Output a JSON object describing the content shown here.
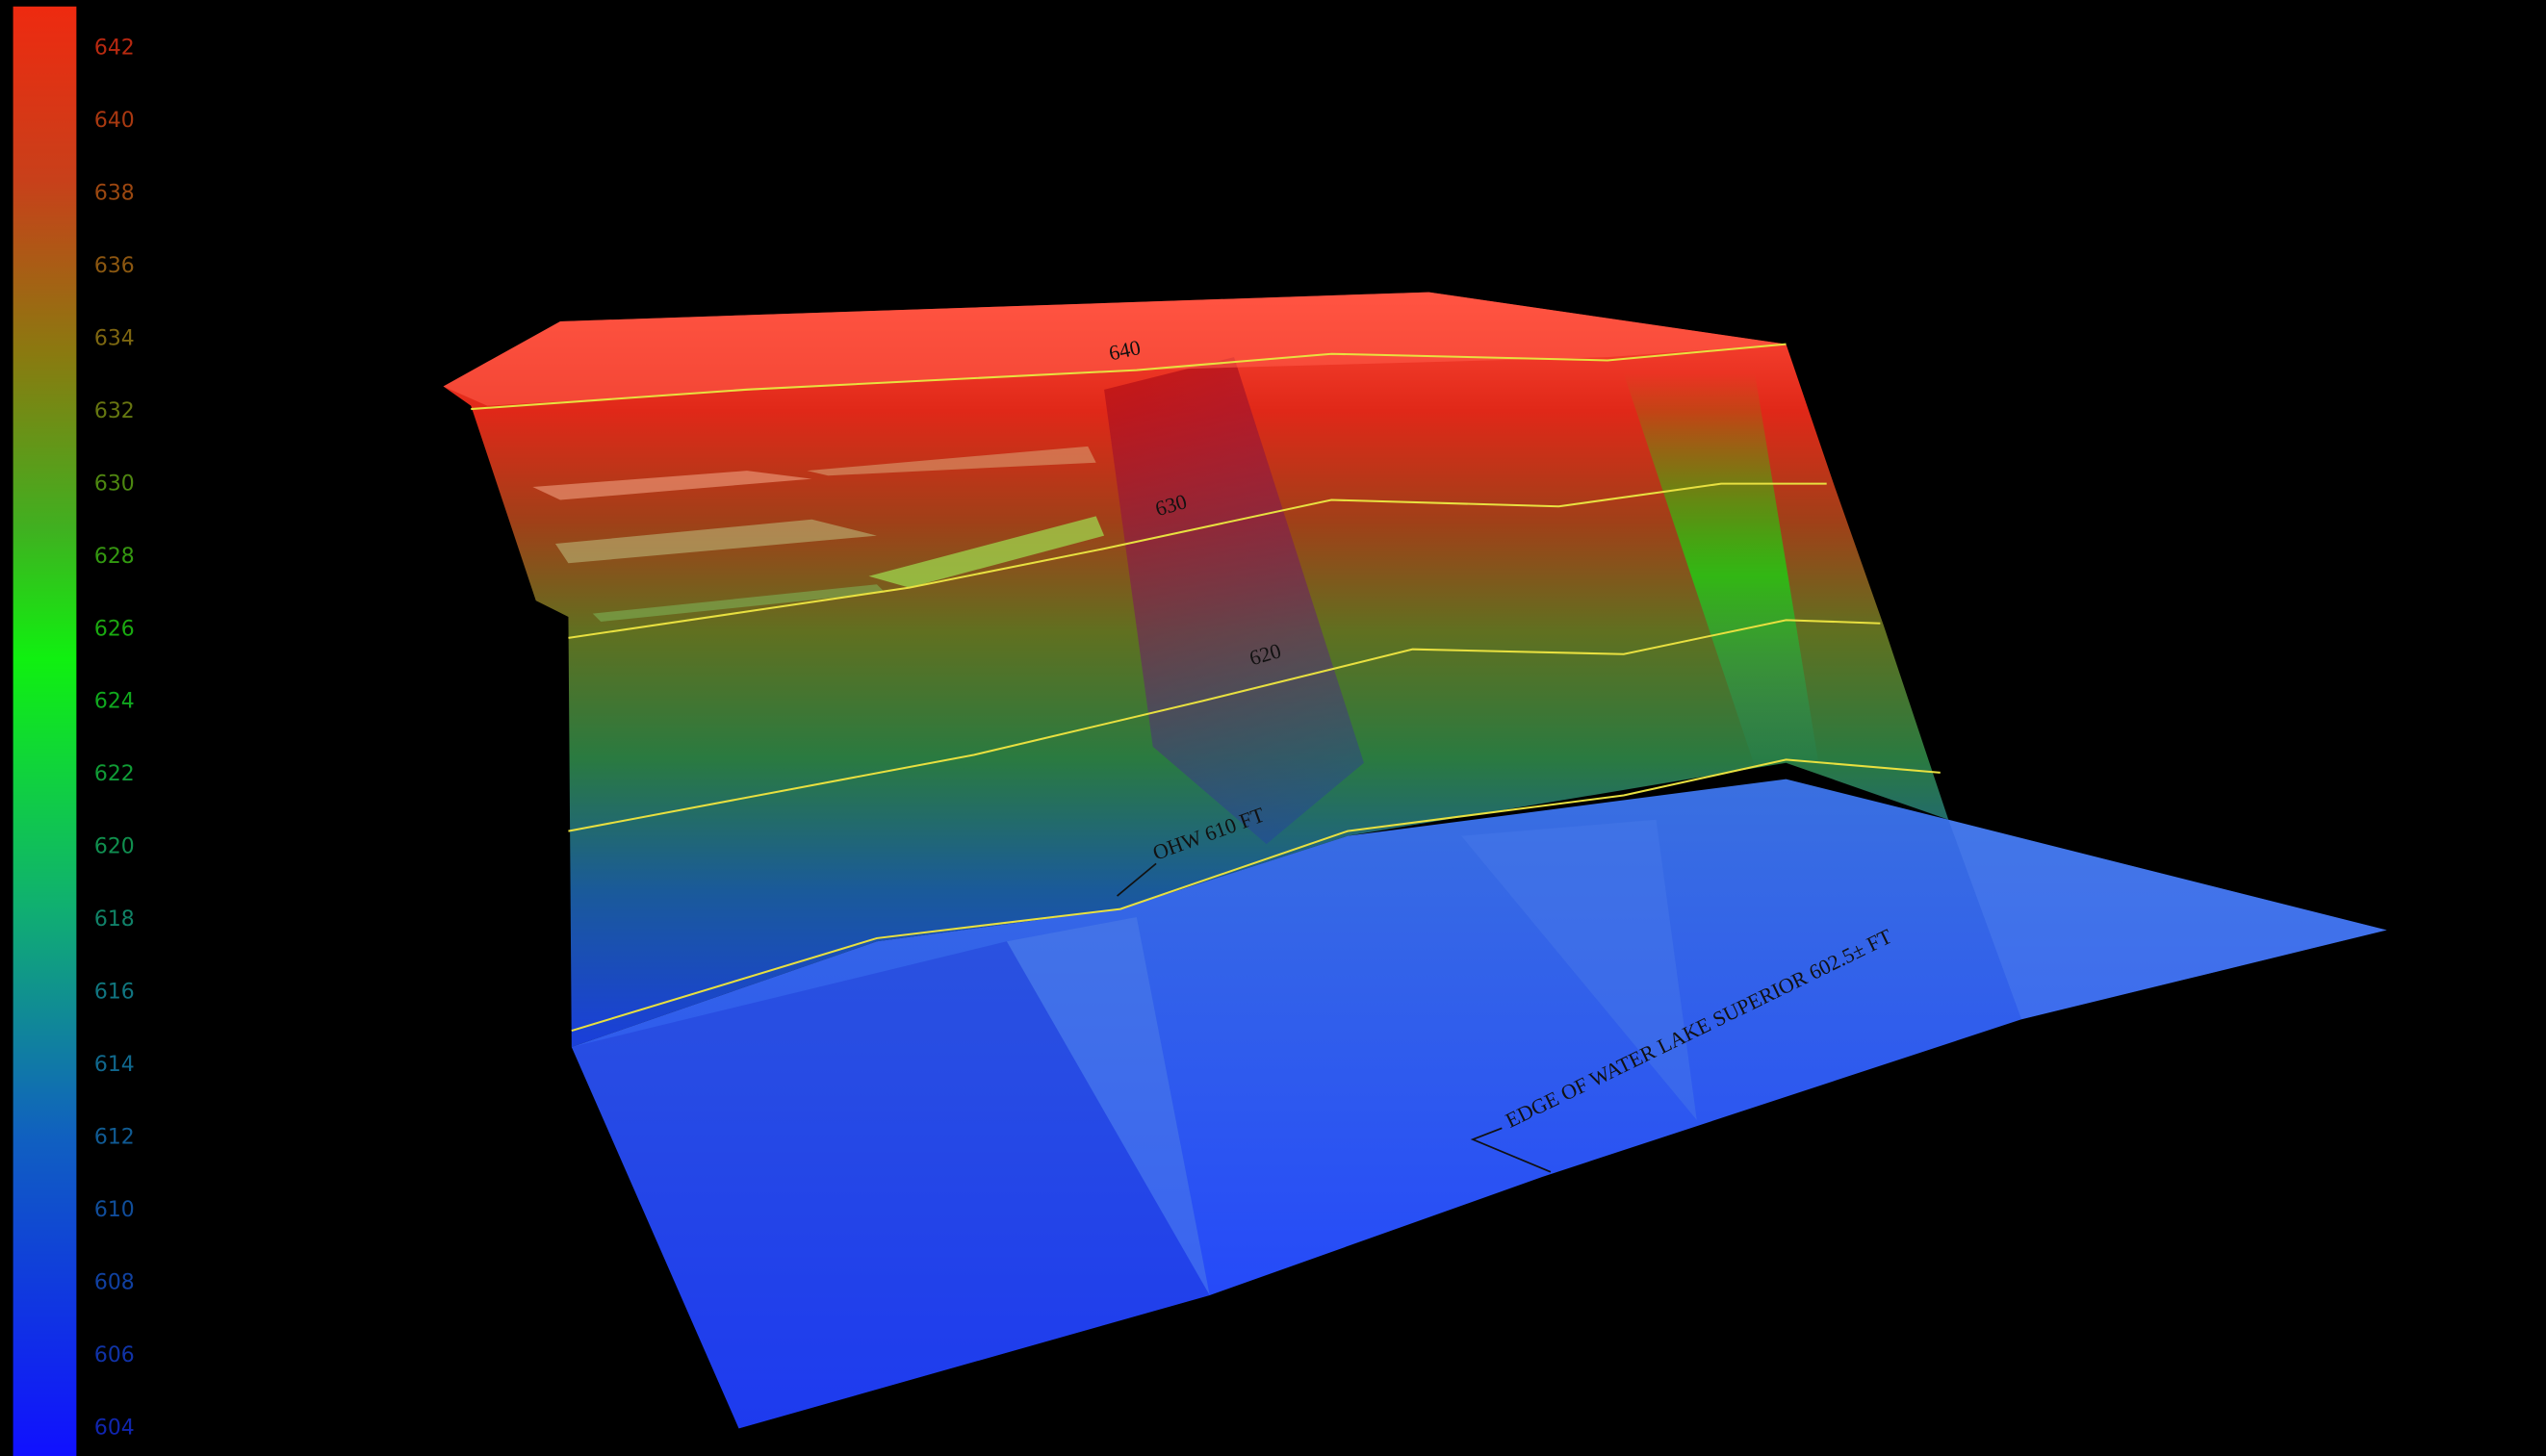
{
  "legend": {
    "ticks": [
      642,
      640,
      638,
      636,
      634,
      632,
      630,
      628,
      626,
      624,
      622,
      620,
      618,
      616,
      614,
      612,
      610,
      608,
      606,
      604
    ]
  },
  "contour_labels": [
    "640",
    "630",
    "620"
  ],
  "annotations": [
    "OHW 610 FT",
    "EDGE OF WATER LAKE SUPERIOR 602.5± FT"
  ]
}
